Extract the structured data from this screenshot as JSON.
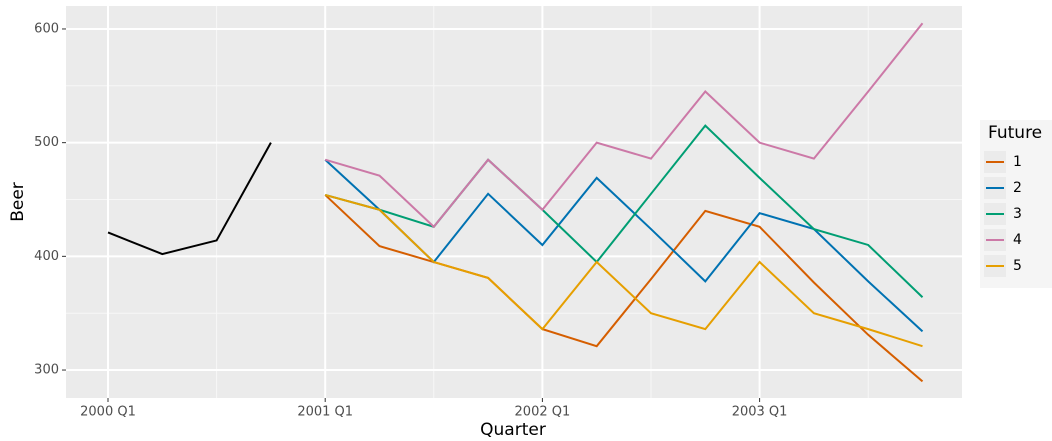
{
  "chart_data": {
    "type": "line",
    "x_label": "Quarter",
    "y_label": "Beer",
    "legend_title": "Future",
    "categories": [
      "2000 Q1",
      null,
      null,
      null,
      "2001 Q1",
      null,
      null,
      null,
      "2002 Q1",
      null,
      null,
      null,
      "2003 Q1",
      null,
      null,
      null
    ],
    "history": {
      "color": "#000000",
      "values": [
        421,
        402,
        414,
        500,
        null,
        null,
        null,
        null,
        null,
        null,
        null,
        null,
        null,
        null,
        null,
        null
      ]
    },
    "series": [
      {
        "name": "1",
        "color": "#D55E00",
        "values": [
          null,
          null,
          null,
          null,
          454,
          409,
          395,
          381,
          336,
          321,
          380,
          440,
          426,
          377,
          331,
          290
        ]
      },
      {
        "name": "2",
        "color": "#0072B2",
        "values": [
          null,
          null,
          null,
          null,
          485,
          441,
          395,
          455,
          410,
          469,
          424,
          378,
          438,
          424,
          378,
          334
        ]
      },
      {
        "name": "3",
        "color": "#009E73",
        "values": [
          null,
          null,
          null,
          null,
          454,
          441,
          426,
          485,
          441,
          395,
          455,
          515,
          469,
          424,
          410,
          364
        ]
      },
      {
        "name": "4",
        "color": "#CC79A7",
        "values": [
          null,
          null,
          null,
          null,
          485,
          471,
          426,
          485,
          441,
          500,
          486,
          545,
          500,
          486,
          545,
          605
        ]
      },
      {
        "name": "5",
        "color": "#E69F00",
        "values": [
          null,
          null,
          null,
          null,
          454,
          441,
          395,
          381,
          336,
          395,
          350,
          336,
          395,
          350,
          336,
          321
        ]
      }
    ],
    "ylim": [
      275.4,
      620.2
    ],
    "yticks": [
      300,
      400,
      500,
      600
    ],
    "grid": true,
    "legend": "right"
  }
}
